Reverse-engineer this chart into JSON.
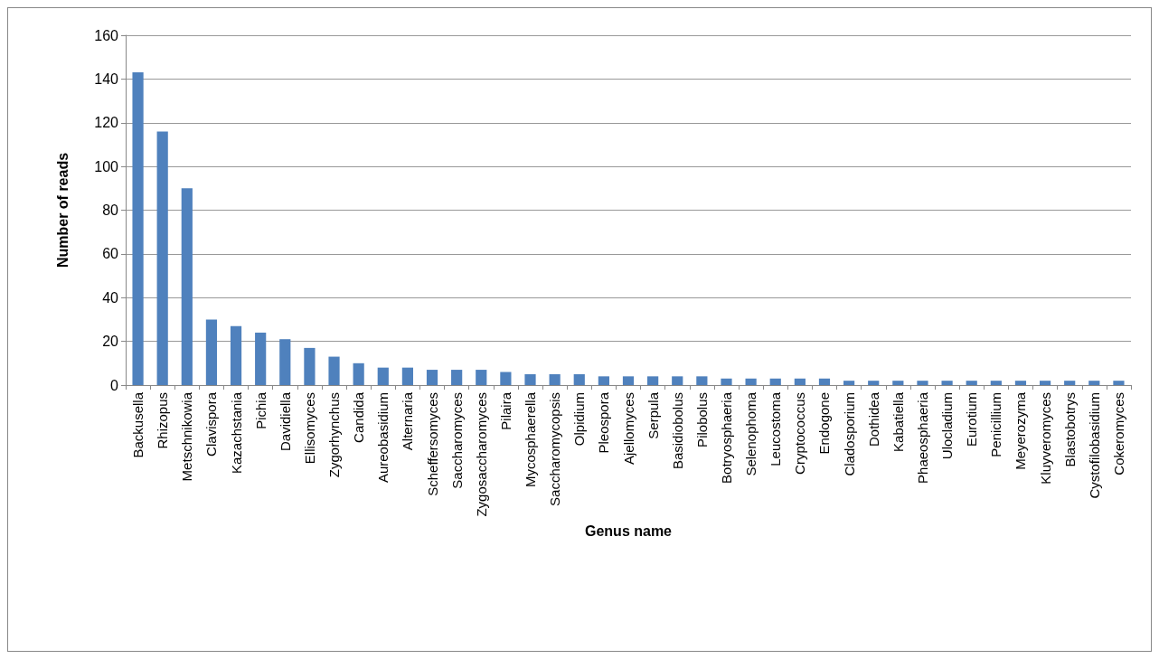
{
  "chart_data": {
    "type": "bar",
    "xlabel": "Genus name",
    "ylabel": "Number of reads",
    "categories": [
      "Backusella",
      "Rhizopus",
      "Metschnikowia",
      "Clavispora",
      "Kazachstania",
      "Pichia",
      "Davidiella",
      "Ellisomyces",
      "Zygorhynchus",
      "Candida",
      "Aureobasidium",
      "Alternaria",
      "Scheffersomyces",
      "Saccharomyces",
      "Zygosaccharomyces",
      "Pilaira",
      "Mycosphaerella",
      "Saccharomycopsis",
      "Olpidium",
      "Pleospora",
      "Ajellomyces",
      "Serpula",
      "Basidiobolus",
      "Pilobolus",
      "Botryosphaeria",
      "Selenophoma",
      "Leucostoma",
      "Cryptococcus",
      "Endogone",
      "Cladosporium",
      "Dothidea",
      "Kabatiella",
      "Phaeosphaeria",
      "Ulocladium",
      "Eurotium",
      "Penicillium",
      "Meyerozyma",
      "Kluyveromyces",
      "Blastobotrys",
      "Cystofilobasidium",
      "Cokeromyces"
    ],
    "values": [
      143,
      116,
      90,
      30,
      27,
      24,
      21,
      17,
      13,
      10,
      8,
      8,
      7,
      7,
      7,
      6,
      5,
      5,
      5,
      4,
      4,
      4,
      4,
      4,
      3,
      3,
      3,
      3,
      3,
      2,
      2,
      2,
      2,
      2,
      2,
      2,
      2,
      2,
      2,
      2,
      2
    ],
    "color": "#4f81bd",
    "ylim": [
      0,
      160
    ],
    "yticks": [
      0,
      20,
      40,
      60,
      80,
      100,
      120,
      140,
      160
    ],
    "grid": "y"
  }
}
